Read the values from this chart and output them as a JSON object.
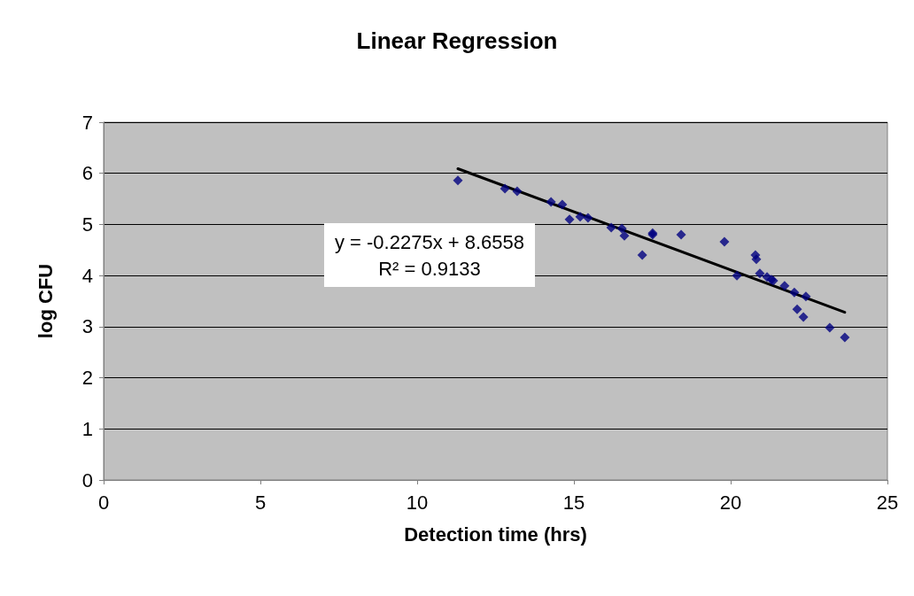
{
  "chart_data": {
    "type": "scatter",
    "title": "Linear Regression",
    "xlabel": "Detection time (hrs)",
    "ylabel": "log CFU",
    "annotations": [
      "y = -0.2275x + 8.6558",
      "R² = 0.9133"
    ],
    "xlim": [
      0,
      25
    ],
    "xticks": [
      0,
      5,
      10,
      15,
      20,
      25
    ],
    "ylim": [
      0,
      7
    ],
    "yticks": [
      0,
      1,
      2,
      3,
      4,
      5,
      6,
      7
    ],
    "grid": "y",
    "marker": "diamond",
    "series": [
      {
        "color": "#000080",
        "x": [
          11.3,
          12.8,
          13.19,
          14.27,
          14.63,
          14.86,
          15.2,
          15.45,
          16.19,
          16.53,
          16.61,
          17.18,
          17.51,
          17.51,
          18.42,
          19.8,
          20.2,
          20.79,
          20.82,
          20.93,
          21.16,
          21.3,
          21.36,
          21.72,
          22.03,
          22.12,
          22.32,
          22.4,
          23.16,
          23.64
        ],
        "values": [
          5.86,
          5.7,
          5.65,
          5.44,
          5.39,
          5.1,
          5.15,
          5.13,
          4.94,
          4.92,
          4.78,
          4.4,
          4.8,
          4.83,
          4.8,
          4.66,
          4.0,
          4.4,
          4.32,
          4.04,
          3.97,
          3.92,
          3.9,
          3.8,
          3.67,
          3.34,
          3.19,
          3.59,
          2.98,
          2.79
        ]
      },
      {
        "type": "line",
        "color": "#000000",
        "marker": "none",
        "line_style": "solid",
        "x": [
          11.3,
          23.64
        ],
        "values": [
          6.09,
          3.28
        ]
      }
    ]
  }
}
